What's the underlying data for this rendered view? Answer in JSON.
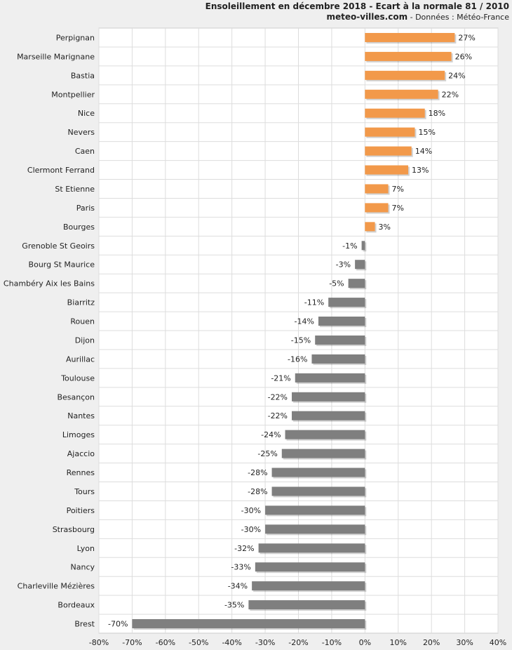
{
  "chart_data": {
    "type": "bar",
    "orientation": "horizontal",
    "title": "Ensoleillement en décembre 2018 - Ecart à la normale 81 / 2010",
    "subtitle_site": "meteo-villes.com",
    "subtitle_source": " - Données : Météo-France",
    "categories": [
      "Perpignan",
      "Marseille Marignane",
      "Bastia",
      "Montpellier",
      "Nice",
      "Nevers",
      "Caen",
      "Clermont Ferrand",
      "St Etienne",
      "Paris",
      "Bourges",
      "Grenoble St Geoirs",
      "Bourg St Maurice",
      "Chambéry Aix les Bains",
      "Biarritz",
      "Rouen",
      "Dijon",
      "Aurillac",
      "Toulouse",
      "Besançon",
      "Nantes",
      "Limoges",
      "Ajaccio",
      "Rennes",
      "Tours",
      "Poitiers",
      "Strasbourg",
      "Lyon",
      "Nancy",
      "Charleville Mézières",
      "Bordeaux",
      "Brest"
    ],
    "values": [
      27,
      26,
      24,
      22,
      18,
      15,
      14,
      13,
      7,
      7,
      3,
      -1,
      -3,
      -5,
      -11,
      -14,
      -15,
      -16,
      -21,
      -22,
      -22,
      -24,
      -25,
      -28,
      -28,
      -30,
      -30,
      -32,
      -33,
      -34,
      -35,
      -70
    ],
    "value_labels": [
      "27%",
      "26%",
      "24%",
      "22%",
      "18%",
      "15%",
      "14%",
      "13%",
      "7%",
      "7%",
      "3%",
      "-1%",
      "-3%",
      "-5%",
      "-11%",
      "-14%",
      "-15%",
      "-16%",
      "-21%",
      "-22%",
      "-22%",
      "-24%",
      "-25%",
      "-28%",
      "-28%",
      "-30%",
      "-30%",
      "-32%",
      "-33%",
      "-34%",
      "-35%",
      "-70%"
    ],
    "xlim": [
      -80,
      40
    ],
    "xticks": [
      -80,
      -70,
      -60,
      -50,
      -40,
      -30,
      -20,
      -10,
      0,
      10,
      20,
      30,
      40
    ],
    "xtick_labels": [
      "-80%",
      "-70%",
      "-60%",
      "-50%",
      "-40%",
      "-30%",
      "-20%",
      "-10%",
      "0%",
      "10%",
      "20%",
      "30%",
      "40%"
    ],
    "grid": true,
    "colors": {
      "positive": "#f2994a",
      "negative": "#7f7f7f",
      "plot_bg": "#ffffff",
      "grid": "#dddddd",
      "page_bg": "#efefef"
    }
  }
}
